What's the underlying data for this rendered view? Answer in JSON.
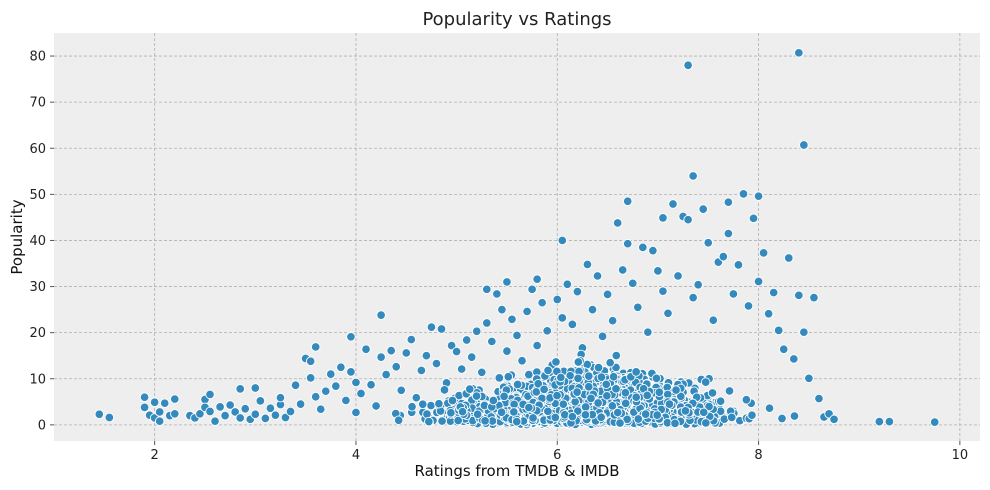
{
  "chart_data": {
    "type": "scatter",
    "title": "Popularity vs Ratings",
    "xlabel": "Ratings from TMDB & IMDB",
    "ylabel": "Popularity",
    "xlim": [
      1,
      10.2
    ],
    "ylim": [
      -3.5,
      85
    ],
    "xticks": [
      2,
      4,
      6,
      8,
      10
    ],
    "yticks": [
      0,
      10,
      20,
      30,
      40,
      50,
      60,
      70,
      80
    ],
    "grid": true,
    "colors": {
      "point": "#348abd",
      "plot_bg": "#eeeeee",
      "grid": "#b0b0b0"
    },
    "points": [
      [
        1.45,
        2.3
      ],
      [
        1.55,
        1.6
      ],
      [
        1.9,
        6.0
      ],
      [
        1.9,
        3.8
      ],
      [
        1.95,
        2.1
      ],
      [
        2.0,
        4.9
      ],
      [
        2.0,
        1.5
      ],
      [
        2.05,
        2.8
      ],
      [
        2.05,
        0.8
      ],
      [
        2.1,
        4.7
      ],
      [
        2.15,
        2.0
      ],
      [
        2.2,
        5.6
      ],
      [
        2.2,
        2.4
      ],
      [
        2.35,
        2.0
      ],
      [
        2.4,
        1.5
      ],
      [
        2.45,
        2.4
      ],
      [
        2.5,
        5.5
      ],
      [
        2.5,
        3.8
      ],
      [
        2.55,
        6.6
      ],
      [
        2.55,
        2.9
      ],
      [
        2.6,
        0.8
      ],
      [
        2.65,
        3.9
      ],
      [
        2.7,
        2.0
      ],
      [
        2.75,
        4.3
      ],
      [
        2.8,
        2.8
      ],
      [
        2.85,
        1.5
      ],
      [
        2.85,
        7.8
      ],
      [
        2.9,
        3.5
      ],
      [
        2.95,
        1.2
      ],
      [
        3.0,
        8.0
      ],
      [
        3.0,
        2.3
      ],
      [
        3.05,
        5.2
      ],
      [
        3.1,
        1.4
      ],
      [
        3.15,
        3.6
      ],
      [
        3.2,
        2.1
      ],
      [
        3.25,
        4.4
      ],
      [
        3.25,
        5.9
      ],
      [
        3.3,
        1.6
      ],
      [
        3.35,
        2.9
      ],
      [
        3.4,
        8.6
      ],
      [
        3.45,
        4.5
      ],
      [
        3.5,
        14.4
      ],
      [
        3.55,
        13.8
      ],
      [
        3.55,
        10.2
      ],
      [
        3.6,
        16.9
      ],
      [
        3.6,
        6.1
      ],
      [
        3.65,
        3.4
      ],
      [
        3.7,
        7.3
      ],
      [
        3.75,
        11.0
      ],
      [
        3.8,
        8.4
      ],
      [
        3.85,
        12.5
      ],
      [
        3.9,
        5.3
      ],
      [
        3.95,
        19.1
      ],
      [
        3.95,
        11.5
      ],
      [
        4.0,
        9.2
      ],
      [
        4.0,
        2.7
      ],
      [
        4.05,
        6.8
      ],
      [
        4.1,
        16.4
      ],
      [
        4.15,
        8.7
      ],
      [
        4.2,
        4.1
      ],
      [
        4.25,
        23.8
      ],
      [
        4.25,
        14.7
      ],
      [
        4.3,
        10.9
      ],
      [
        4.35,
        16.1
      ],
      [
        4.4,
        12.6
      ],
      [
        4.45,
        7.5
      ],
      [
        4.5,
        15.6
      ],
      [
        4.55,
        18.5
      ],
      [
        4.6,
        5.9
      ],
      [
        4.65,
        11.8
      ],
      [
        4.7,
        15.0
      ],
      [
        4.75,
        21.2
      ],
      [
        4.8,
        13.3
      ],
      [
        4.85,
        20.8
      ],
      [
        4.9,
        9.1
      ],
      [
        4.95,
        17.2
      ],
      [
        5.0,
        15.9
      ],
      [
        5.05,
        12.1
      ],
      [
        5.1,
        18.4
      ],
      [
        5.15,
        14.7
      ],
      [
        5.2,
        20.3
      ],
      [
        5.25,
        11.4
      ],
      [
        5.3,
        29.4
      ],
      [
        5.3,
        22.1
      ],
      [
        5.35,
        18.1
      ],
      [
        5.4,
        28.4
      ],
      [
        5.45,
        25.0
      ],
      [
        5.5,
        31.0
      ],
      [
        5.5,
        16.0
      ],
      [
        5.55,
        22.9
      ],
      [
        5.6,
        19.4
      ],
      [
        5.65,
        13.9
      ],
      [
        5.7,
        24.6
      ],
      [
        5.75,
        29.4
      ],
      [
        5.8,
        31.6
      ],
      [
        5.8,
        17.2
      ],
      [
        5.85,
        26.5
      ],
      [
        5.9,
        20.4
      ],
      [
        5.95,
        13.0
      ],
      [
        6.0,
        27.2
      ],
      [
        6.05,
        40.0
      ],
      [
        6.05,
        23.2
      ],
      [
        6.1,
        30.5
      ],
      [
        6.15,
        21.8
      ],
      [
        6.2,
        28.9
      ],
      [
        6.25,
        16.7
      ],
      [
        6.3,
        34.8
      ],
      [
        6.35,
        25.0
      ],
      [
        6.4,
        32.3
      ],
      [
        6.45,
        19.2
      ],
      [
        6.5,
        28.3
      ],
      [
        6.55,
        22.6
      ],
      [
        6.6,
        43.8
      ],
      [
        6.65,
        33.6
      ],
      [
        6.7,
        48.5
      ],
      [
        6.7,
        39.3
      ],
      [
        6.75,
        30.7
      ],
      [
        6.8,
        25.5
      ],
      [
        6.85,
        38.5
      ],
      [
        6.9,
        20.1
      ],
      [
        6.95,
        37.8
      ],
      [
        7.0,
        33.4
      ],
      [
        7.05,
        29.0
      ],
      [
        7.05,
        44.9
      ],
      [
        7.1,
        24.2
      ],
      [
        7.15,
        47.9
      ],
      [
        7.2,
        32.3
      ],
      [
        7.25,
        45.2
      ],
      [
        7.3,
        78.0
      ],
      [
        7.3,
        44.5
      ],
      [
        7.35,
        54.0
      ],
      [
        7.35,
        27.6
      ],
      [
        7.4,
        30.4
      ],
      [
        7.45,
        46.8
      ],
      [
        7.5,
        39.5
      ],
      [
        7.55,
        22.7
      ],
      [
        7.6,
        35.3
      ],
      [
        7.65,
        36.5
      ],
      [
        7.7,
        48.3
      ],
      [
        7.7,
        41.5
      ],
      [
        7.75,
        28.4
      ],
      [
        7.8,
        34.7
      ],
      [
        7.85,
        50.1
      ],
      [
        7.9,
        25.8
      ],
      [
        7.95,
        44.8
      ],
      [
        8.0,
        49.6
      ],
      [
        8.0,
        31.1
      ],
      [
        8.05,
        37.3
      ],
      [
        8.1,
        24.1
      ],
      [
        8.15,
        28.7
      ],
      [
        8.2,
        20.5
      ],
      [
        8.25,
        16.4
      ],
      [
        8.3,
        36.2
      ],
      [
        8.35,
        14.3
      ],
      [
        8.4,
        80.7
      ],
      [
        8.4,
        28.1
      ],
      [
        8.45,
        60.7
      ],
      [
        8.45,
        20.1
      ],
      [
        8.5,
        10.1
      ],
      [
        8.55,
        27.6
      ],
      [
        8.6,
        5.7
      ],
      [
        8.65,
        1.7
      ],
      [
        8.7,
        2.4
      ],
      [
        8.75,
        1.2
      ],
      [
        9.2,
        0.7
      ],
      [
        9.3,
        0.7
      ],
      [
        9.75,
        0.6
      ]
    ]
  }
}
